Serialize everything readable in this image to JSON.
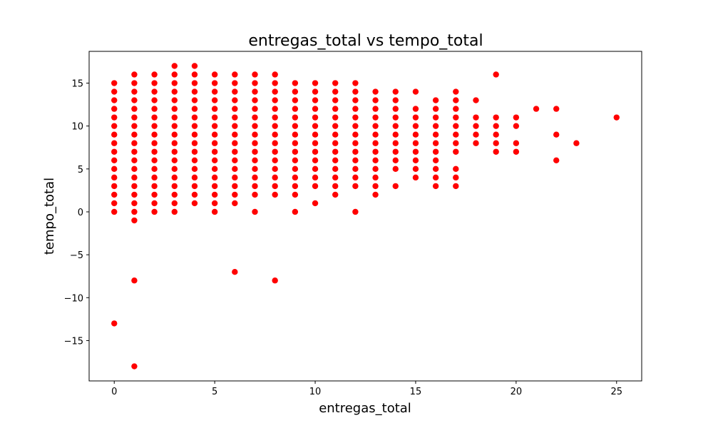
{
  "chart_data": {
    "type": "scatter",
    "title": "entregas_total vs tempo_total",
    "xlabel": "entregas_total",
    "ylabel": "tempo_total",
    "xlim": [
      -1.25,
      26.25
    ],
    "ylim": [
      -19.7,
      18.7
    ],
    "xticks": [
      0,
      5,
      10,
      15,
      20,
      25
    ],
    "yticks": [
      -15,
      -10,
      -5,
      0,
      5,
      10,
      15
    ],
    "xtick_labels": [
      "0",
      "5",
      "10",
      "15",
      "20",
      "25"
    ],
    "ytick_labels": [
      "−15",
      "−10",
      "−5",
      "0",
      "5",
      "10",
      "15"
    ],
    "grid": false,
    "marker_color": "#ff0000",
    "points": [
      [
        0,
        -13
      ],
      [
        0,
        0
      ],
      [
        0,
        1
      ],
      [
        0,
        2
      ],
      [
        0,
        3
      ],
      [
        0,
        4
      ],
      [
        0,
        5
      ],
      [
        0,
        6
      ],
      [
        0,
        7
      ],
      [
        0,
        8
      ],
      [
        0,
        9
      ],
      [
        0,
        10
      ],
      [
        0,
        11
      ],
      [
        0,
        12
      ],
      [
        0,
        13
      ],
      [
        0,
        14
      ],
      [
        0,
        15
      ],
      [
        1,
        -18
      ],
      [
        1,
        -8
      ],
      [
        1,
        -1
      ],
      [
        1,
        0
      ],
      [
        1,
        1
      ],
      [
        1,
        2
      ],
      [
        1,
        3
      ],
      [
        1,
        4
      ],
      [
        1,
        5
      ],
      [
        1,
        6
      ],
      [
        1,
        7
      ],
      [
        1,
        8
      ],
      [
        1,
        9
      ],
      [
        1,
        10
      ],
      [
        1,
        11
      ],
      [
        1,
        12
      ],
      [
        1,
        13
      ],
      [
        1,
        14
      ],
      [
        1,
        15
      ],
      [
        1,
        16
      ],
      [
        2,
        0
      ],
      [
        2,
        1
      ],
      [
        2,
        2
      ],
      [
        2,
        3
      ],
      [
        2,
        4
      ],
      [
        2,
        5
      ],
      [
        2,
        6
      ],
      [
        2,
        7
      ],
      [
        2,
        8
      ],
      [
        2,
        9
      ],
      [
        2,
        10
      ],
      [
        2,
        11
      ],
      [
        2,
        12
      ],
      [
        2,
        13
      ],
      [
        2,
        14
      ],
      [
        2,
        15
      ],
      [
        2,
        16
      ],
      [
        3,
        0
      ],
      [
        3,
        1
      ],
      [
        3,
        2
      ],
      [
        3,
        3
      ],
      [
        3,
        4
      ],
      [
        3,
        5
      ],
      [
        3,
        6
      ],
      [
        3,
        7
      ],
      [
        3,
        8
      ],
      [
        3,
        9
      ],
      [
        3,
        10
      ],
      [
        3,
        11
      ],
      [
        3,
        12
      ],
      [
        3,
        13
      ],
      [
        3,
        14
      ],
      [
        3,
        15
      ],
      [
        3,
        16
      ],
      [
        3,
        17
      ],
      [
        4,
        1
      ],
      [
        4,
        2
      ],
      [
        4,
        3
      ],
      [
        4,
        4
      ],
      [
        4,
        5
      ],
      [
        4,
        6
      ],
      [
        4,
        7
      ],
      [
        4,
        8
      ],
      [
        4,
        9
      ],
      [
        4,
        10
      ],
      [
        4,
        11
      ],
      [
        4,
        12
      ],
      [
        4,
        13
      ],
      [
        4,
        14
      ],
      [
        4,
        15
      ],
      [
        4,
        16
      ],
      [
        4,
        17
      ],
      [
        5,
        0
      ],
      [
        5,
        1
      ],
      [
        5,
        2
      ],
      [
        5,
        3
      ],
      [
        5,
        4
      ],
      [
        5,
        5
      ],
      [
        5,
        6
      ],
      [
        5,
        7
      ],
      [
        5,
        8
      ],
      [
        5,
        9
      ],
      [
        5,
        10
      ],
      [
        5,
        11
      ],
      [
        5,
        12
      ],
      [
        5,
        13
      ],
      [
        5,
        14
      ],
      [
        5,
        15
      ],
      [
        5,
        16
      ],
      [
        6,
        -7
      ],
      [
        6,
        1
      ],
      [
        6,
        2
      ],
      [
        6,
        3
      ],
      [
        6,
        4
      ],
      [
        6,
        5
      ],
      [
        6,
        6
      ],
      [
        6,
        7
      ],
      [
        6,
        8
      ],
      [
        6,
        9
      ],
      [
        6,
        10
      ],
      [
        6,
        11
      ],
      [
        6,
        12
      ],
      [
        6,
        13
      ],
      [
        6,
        14
      ],
      [
        6,
        15
      ],
      [
        6,
        16
      ],
      [
        7,
        0
      ],
      [
        7,
        2
      ],
      [
        7,
        3
      ],
      [
        7,
        4
      ],
      [
        7,
        5
      ],
      [
        7,
        6
      ],
      [
        7,
        7
      ],
      [
        7,
        8
      ],
      [
        7,
        9
      ],
      [
        7,
        10
      ],
      [
        7,
        11
      ],
      [
        7,
        12
      ],
      [
        7,
        13
      ],
      [
        7,
        14
      ],
      [
        7,
        15
      ],
      [
        7,
        16
      ],
      [
        8,
        -8
      ],
      [
        8,
        2
      ],
      [
        8,
        3
      ],
      [
        8,
        4
      ],
      [
        8,
        5
      ],
      [
        8,
        6
      ],
      [
        8,
        7
      ],
      [
        8,
        8
      ],
      [
        8,
        9
      ],
      [
        8,
        10
      ],
      [
        8,
        11
      ],
      [
        8,
        12
      ],
      [
        8,
        13
      ],
      [
        8,
        14
      ],
      [
        8,
        15
      ],
      [
        8,
        16
      ],
      [
        9,
        0
      ],
      [
        9,
        2
      ],
      [
        9,
        3
      ],
      [
        9,
        4
      ],
      [
        9,
        5
      ],
      [
        9,
        6
      ],
      [
        9,
        7
      ],
      [
        9,
        8
      ],
      [
        9,
        9
      ],
      [
        9,
        10
      ],
      [
        9,
        11
      ],
      [
        9,
        12
      ],
      [
        9,
        13
      ],
      [
        9,
        14
      ],
      [
        9,
        15
      ],
      [
        10,
        1
      ],
      [
        10,
        3
      ],
      [
        10,
        4
      ],
      [
        10,
        5
      ],
      [
        10,
        6
      ],
      [
        10,
        7
      ],
      [
        10,
        8
      ],
      [
        10,
        9
      ],
      [
        10,
        10
      ],
      [
        10,
        11
      ],
      [
        10,
        12
      ],
      [
        10,
        13
      ],
      [
        10,
        14
      ],
      [
        10,
        15
      ],
      [
        11,
        2
      ],
      [
        11,
        3
      ],
      [
        11,
        4
      ],
      [
        11,
        5
      ],
      [
        11,
        6
      ],
      [
        11,
        7
      ],
      [
        11,
        8
      ],
      [
        11,
        9
      ],
      [
        11,
        10
      ],
      [
        11,
        11
      ],
      [
        11,
        12
      ],
      [
        11,
        13
      ],
      [
        11,
        14
      ],
      [
        11,
        15
      ],
      [
        12,
        0
      ],
      [
        12,
        3
      ],
      [
        12,
        4
      ],
      [
        12,
        5
      ],
      [
        12,
        6
      ],
      [
        12,
        7
      ],
      [
        12,
        8
      ],
      [
        12,
        9
      ],
      [
        12,
        10
      ],
      [
        12,
        11
      ],
      [
        12,
        12
      ],
      [
        12,
        13
      ],
      [
        12,
        14
      ],
      [
        12,
        15
      ],
      [
        13,
        2
      ],
      [
        13,
        3
      ],
      [
        13,
        4
      ],
      [
        13,
        5
      ],
      [
        13,
        6
      ],
      [
        13,
        7
      ],
      [
        13,
        8
      ],
      [
        13,
        9
      ],
      [
        13,
        10
      ],
      [
        13,
        11
      ],
      [
        13,
        12
      ],
      [
        13,
        13
      ],
      [
        13,
        14
      ],
      [
        14,
        3
      ],
      [
        14,
        5
      ],
      [
        14,
        6
      ],
      [
        14,
        7
      ],
      [
        14,
        8
      ],
      [
        14,
        9
      ],
      [
        14,
        10
      ],
      [
        14,
        11
      ],
      [
        14,
        12
      ],
      [
        14,
        13
      ],
      [
        14,
        14
      ],
      [
        15,
        4
      ],
      [
        15,
        5
      ],
      [
        15,
        6
      ],
      [
        15,
        7
      ],
      [
        15,
        8
      ],
      [
        15,
        9
      ],
      [
        15,
        10
      ],
      [
        15,
        11
      ],
      [
        15,
        12
      ],
      [
        15,
        14
      ],
      [
        16,
        3
      ],
      [
        16,
        4
      ],
      [
        16,
        5
      ],
      [
        16,
        6
      ],
      [
        16,
        7
      ],
      [
        16,
        8
      ],
      [
        16,
        9
      ],
      [
        16,
        10
      ],
      [
        16,
        11
      ],
      [
        16,
        12
      ],
      [
        16,
        13
      ],
      [
        17,
        3
      ],
      [
        17,
        4
      ],
      [
        17,
        5
      ],
      [
        17,
        7
      ],
      [
        17,
        8
      ],
      [
        17,
        9
      ],
      [
        17,
        10
      ],
      [
        17,
        11
      ],
      [
        17,
        12
      ],
      [
        17,
        13
      ],
      [
        17,
        14
      ],
      [
        18,
        8
      ],
      [
        18,
        9
      ],
      [
        18,
        10
      ],
      [
        18,
        11
      ],
      [
        18,
        13
      ],
      [
        19,
        7
      ],
      [
        19,
        8
      ],
      [
        19,
        9
      ],
      [
        19,
        10
      ],
      [
        19,
        11
      ],
      [
        19,
        16
      ],
      [
        20,
        7
      ],
      [
        20,
        8
      ],
      [
        20,
        10
      ],
      [
        20,
        11
      ],
      [
        21,
        12
      ],
      [
        22,
        6
      ],
      [
        22,
        9
      ],
      [
        22,
        12
      ],
      [
        23,
        8
      ],
      [
        25,
        11
      ]
    ]
  }
}
